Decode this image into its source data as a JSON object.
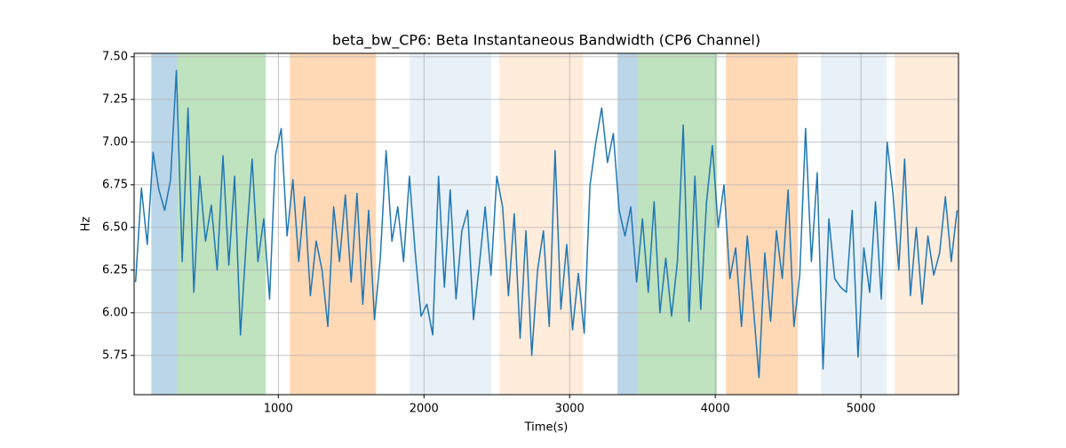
{
  "chart_data": {
    "type": "line",
    "title": "beta_bw_CP6: Beta Instantaneous Bandwidth (CP6 Channel)",
    "xlabel": "Time(s)",
    "ylabel": "Hz",
    "xlim": [
      10,
      5670
    ],
    "ylim": [
      5.52,
      7.52
    ],
    "xticks": [
      1000,
      2000,
      3000,
      4000,
      5000
    ],
    "yticks": [
      5.75,
      {
        "value": 6,
        "label": "6.00"
      },
      6.25,
      {
        "value": 6.5,
        "label": "6.50"
      },
      6.75,
      {
        "value": 7,
        "label": "7.00"
      },
      7.25,
      {
        "value": 7.5,
        "label": "7.50"
      }
    ],
    "grid": true,
    "spans": [
      {
        "start": 128,
        "end": 305,
        "color": "#1f77b4",
        "alpha": 0.3
      },
      {
        "start": 305,
        "end": 914,
        "color": "#2ca02c",
        "alpha": 0.3
      },
      {
        "start": 1079,
        "end": 1671,
        "color": "#ff7f0e",
        "alpha": 0.3
      },
      {
        "start": 1902,
        "end": 2463,
        "color": "#1f77b4",
        "alpha": 0.1
      },
      {
        "start": 2518,
        "end": 3091,
        "color": "#ff7f0e",
        "alpha": 0.15
      },
      {
        "start": 3329,
        "end": 3469,
        "color": "#1f77b4",
        "alpha": 0.3
      },
      {
        "start": 3469,
        "end": 4012,
        "color": "#2ca02c",
        "alpha": 0.3
      },
      {
        "start": 4073,
        "end": 4567,
        "color": "#ff7f0e",
        "alpha": 0.3
      },
      {
        "start": 4725,
        "end": 5177,
        "color": "#1f77b4",
        "alpha": 0.1
      },
      {
        "start": 5232,
        "end": 5670,
        "color": "#ff7f0e",
        "alpha": 0.15
      }
    ],
    "x": [
      20,
      60,
      100,
      140,
      180,
      220,
      260,
      300,
      340,
      380,
      420,
      460,
      500,
      540,
      580,
      620,
      660,
      700,
      740,
      780,
      820,
      860,
      900,
      940,
      980,
      1020,
      1060,
      1100,
      1140,
      1180,
      1220,
      1260,
      1300,
      1340,
      1380,
      1420,
      1460,
      1500,
      1540,
      1580,
      1620,
      1660,
      1700,
      1740,
      1780,
      1820,
      1860,
      1900,
      1940,
      1980,
      2020,
      2060,
      2100,
      2140,
      2180,
      2220,
      2260,
      2300,
      2340,
      2380,
      2420,
      2460,
      2500,
      2540,
      2580,
      2620,
      2660,
      2700,
      2740,
      2780,
      2820,
      2860,
      2900,
      2940,
      2980,
      3020,
      3060,
      3100,
      3140,
      3180,
      3220,
      3260,
      3300,
      3340,
      3380,
      3420,
      3460,
      3500,
      3540,
      3580,
      3620,
      3660,
      3700,
      3740,
      3780,
      3820,
      3860,
      3900,
      3940,
      3980,
      4020,
      4060,
      4100,
      4140,
      4180,
      4220,
      4260,
      4300,
      4340,
      4380,
      4420,
      4460,
      4500,
      4540,
      4580,
      4620,
      4660,
      4700,
      4740,
      4780,
      4820,
      4860,
      4900,
      4940,
      4980,
      5020,
      5060,
      5100,
      5140,
      5180,
      5220,
      5260,
      5300,
      5340,
      5380,
      5420,
      5460,
      5500,
      5540,
      5580,
      5620,
      5660
    ],
    "series": [
      {
        "name": "beta_bw_CP6",
        "color": "#1f77b4",
        "values": [
          6.18,
          6.73,
          6.4,
          6.94,
          6.72,
          6.6,
          6.78,
          7.42,
          6.3,
          7.2,
          6.12,
          6.8,
          6.42,
          6.63,
          6.25,
          6.92,
          6.28,
          6.8,
          5.87,
          6.42,
          6.9,
          6.3,
          6.55,
          6.08,
          6.92,
          7.08,
          6.45,
          6.78,
          6.3,
          6.68,
          6.1,
          6.42,
          6.25,
          5.92,
          6.62,
          6.3,
          6.69,
          6.18,
          6.7,
          6.05,
          6.6,
          5.96,
          6.32,
          6.95,
          6.42,
          6.62,
          6.3,
          6.8,
          6.35,
          5.98,
          6.05,
          5.87,
          6.8,
          6.15,
          6.72,
          6.08,
          6.48,
          6.6,
          5.96,
          6.28,
          6.62,
          6.22,
          6.8,
          6.62,
          6.1,
          6.58,
          5.85,
          6.48,
          5.75,
          6.25,
          6.48,
          5.92,
          6.95,
          6.02,
          6.4,
          5.9,
          6.23,
          5.88,
          6.75,
          7.0,
          7.2,
          6.88,
          7.05,
          6.6,
          6.45,
          6.62,
          6.18,
          6.55,
          6.12,
          6.65,
          6.0,
          6.32,
          5.98,
          6.3,
          7.1,
          5.95,
          6.8,
          6.02,
          6.65,
          6.98,
          6.5,
          6.75,
          6.2,
          6.38,
          5.92,
          6.45,
          6.05,
          5.62,
          6.35,
          5.95,
          6.48,
          6.2,
          6.72,
          5.92,
          6.22,
          7.08,
          6.3,
          6.82,
          5.67,
          6.55,
          6.2,
          6.15,
          6.12,
          6.6,
          5.74,
          6.38,
          6.12,
          6.65,
          6.08,
          7.0,
          6.7,
          6.25,
          6.9,
          6.1,
          6.5,
          6.05,
          6.45,
          6.22,
          6.35,
          6.68,
          6.3,
          6.6
        ]
      }
    ]
  }
}
